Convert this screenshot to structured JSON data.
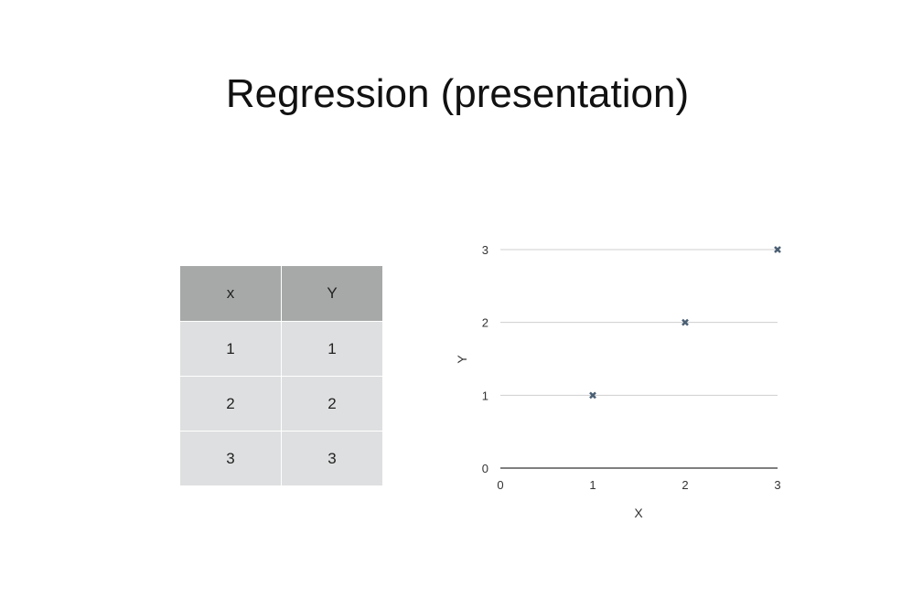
{
  "slide": {
    "title": "Regression (presentation)"
  },
  "table": {
    "headers": [
      "x",
      "Y"
    ],
    "rows": [
      [
        "1",
        "1"
      ],
      [
        "2",
        "2"
      ],
      [
        "3",
        "3"
      ]
    ]
  },
  "chart_data": {
    "type": "scatter",
    "xlabel": "X",
    "ylabel": "Y",
    "xlim": [
      0,
      3
    ],
    "ylim": [
      0,
      3
    ],
    "xticks": [
      "0",
      "1",
      "2",
      "3"
    ],
    "yticks": [
      "0",
      "1",
      "2",
      "3"
    ],
    "grid": "horizontal",
    "x": [
      1,
      2,
      3
    ],
    "y": [
      1,
      2,
      3
    ],
    "marker": "x",
    "colors": {
      "marker": "#4a5f73",
      "grid": "#cfcfcf",
      "axis": "#555555"
    }
  }
}
